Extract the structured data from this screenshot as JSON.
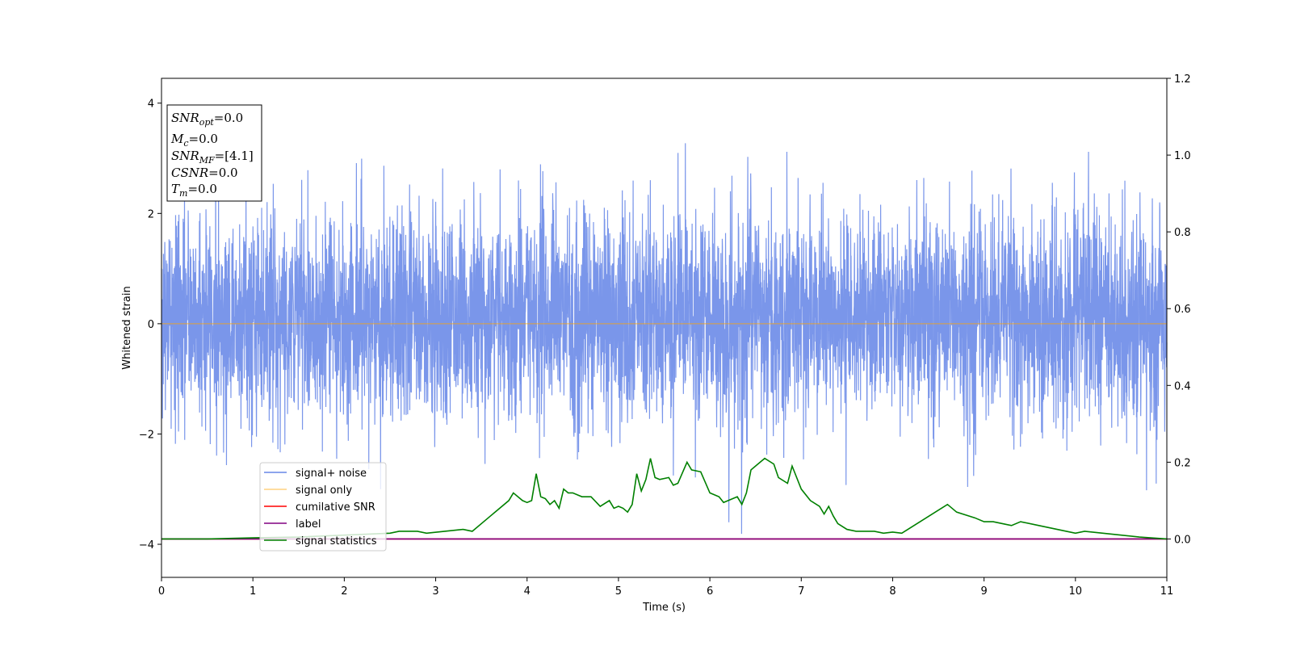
{
  "chart_data": {
    "type": "line",
    "xlabel": "Time (s)",
    "ylabel": "Whitened strain",
    "xlim": [
      0,
      11
    ],
    "ylim": [
      -4.6,
      4.45
    ],
    "y2lim": [
      -0.1,
      1.2
    ],
    "x_ticks": [
      "0",
      "1",
      "2",
      "3",
      "4",
      "5",
      "6",
      "7",
      "8",
      "9",
      "10",
      "11"
    ],
    "y_ticks": [
      "4",
      "2",
      "0",
      "−2",
      "−4"
    ],
    "y2_ticks": [
      "1.2",
      "1.0",
      "0.8",
      "0.6",
      "0.4",
      "0.2",
      "0.0"
    ],
    "grid": false,
    "legend_position": "lower-left",
    "info_box": {
      "snr_opt": {
        "base": "SNR",
        "sub": "opt",
        "value": "=0.0"
      },
      "mc": {
        "base": "M",
        "sub": "c",
        "value": "=0.0"
      },
      "snr_mf": {
        "base": "SNR",
        "sub": "MF",
        "value": "=[4.1]"
      },
      "csnr": {
        "base": "CSNR",
        "value": "=0.0"
      },
      "tm": {
        "base": "T",
        "sub": "m",
        "value": "=0.0"
      }
    },
    "series": [
      {
        "name": "signal+ noise",
        "color": "#4169e1",
        "axis": "left",
        "noise_std": 1.0,
        "t_start": 0,
        "t_end": 11
      },
      {
        "name": "signal only",
        "color": "#ffa500",
        "axis": "left",
        "x": [
          0,
          11
        ],
        "y": [
          0,
          0
        ]
      },
      {
        "name": "cumilative SNR",
        "color": "#ff0000",
        "axis": "right",
        "x": [
          0,
          11
        ],
        "y": [
          0,
          0
        ]
      },
      {
        "name": "label",
        "color": "#800080",
        "axis": "right",
        "x": [
          0,
          11
        ],
        "y": [
          0,
          0
        ]
      },
      {
        "name": "signal statistics",
        "color": "#008000",
        "axis": "right",
        "x": [
          0,
          0.5,
          1.0,
          1.5,
          2.0,
          2.5,
          2.6,
          2.8,
          2.9,
          3.1,
          3.3,
          3.4,
          3.6,
          3.8,
          3.85,
          3.95,
          4.0,
          4.05,
          4.1,
          4.15,
          4.2,
          4.25,
          4.3,
          4.35,
          4.4,
          4.45,
          4.5,
          4.6,
          4.7,
          4.8,
          4.9,
          4.95,
          5.0,
          5.05,
          5.1,
          5.15,
          5.2,
          5.25,
          5.3,
          5.35,
          5.4,
          5.45,
          5.55,
          5.6,
          5.65,
          5.75,
          5.8,
          5.9,
          6.0,
          6.1,
          6.15,
          6.3,
          6.35,
          6.4,
          6.45,
          6.5,
          6.55,
          6.6,
          6.7,
          6.75,
          6.85,
          6.9,
          7.0,
          7.1,
          7.2,
          7.25,
          7.3,
          7.35,
          7.4,
          7.5,
          7.6,
          7.8,
          7.9,
          8.0,
          8.1,
          8.2,
          8.3,
          8.4,
          8.5,
          8.6,
          8.7,
          8.9,
          9.0,
          9.1,
          9.2,
          9.3,
          9.4,
          9.6,
          9.7,
          9.9,
          10.0,
          10.1,
          10.3,
          10.5,
          10.7,
          11.0
        ],
        "y": [
          0.0,
          0.0,
          0.003,
          0.005,
          0.01,
          0.015,
          0.02,
          0.02,
          0.015,
          0.02,
          0.025,
          0.02,
          0.06,
          0.1,
          0.12,
          0.1,
          0.095,
          0.1,
          0.17,
          0.11,
          0.105,
          0.09,
          0.1,
          0.08,
          0.13,
          0.12,
          0.12,
          0.11,
          0.11,
          0.085,
          0.1,
          0.08,
          0.085,
          0.08,
          0.07,
          0.09,
          0.17,
          0.125,
          0.155,
          0.21,
          0.16,
          0.155,
          0.16,
          0.14,
          0.145,
          0.2,
          0.18,
          0.175,
          0.12,
          0.11,
          0.095,
          0.11,
          0.09,
          0.12,
          0.18,
          0.19,
          0.2,
          0.21,
          0.195,
          0.16,
          0.145,
          0.19,
          0.13,
          0.1,
          0.085,
          0.065,
          0.085,
          0.06,
          0.04,
          0.025,
          0.02,
          0.02,
          0.015,
          0.018,
          0.015,
          0.03,
          0.045,
          0.06,
          0.075,
          0.09,
          0.07,
          0.055,
          0.045,
          0.045,
          0.04,
          0.035,
          0.045,
          0.035,
          0.03,
          0.02,
          0.015,
          0.02,
          0.015,
          0.01,
          0.005,
          0.0
        ]
      }
    ]
  }
}
